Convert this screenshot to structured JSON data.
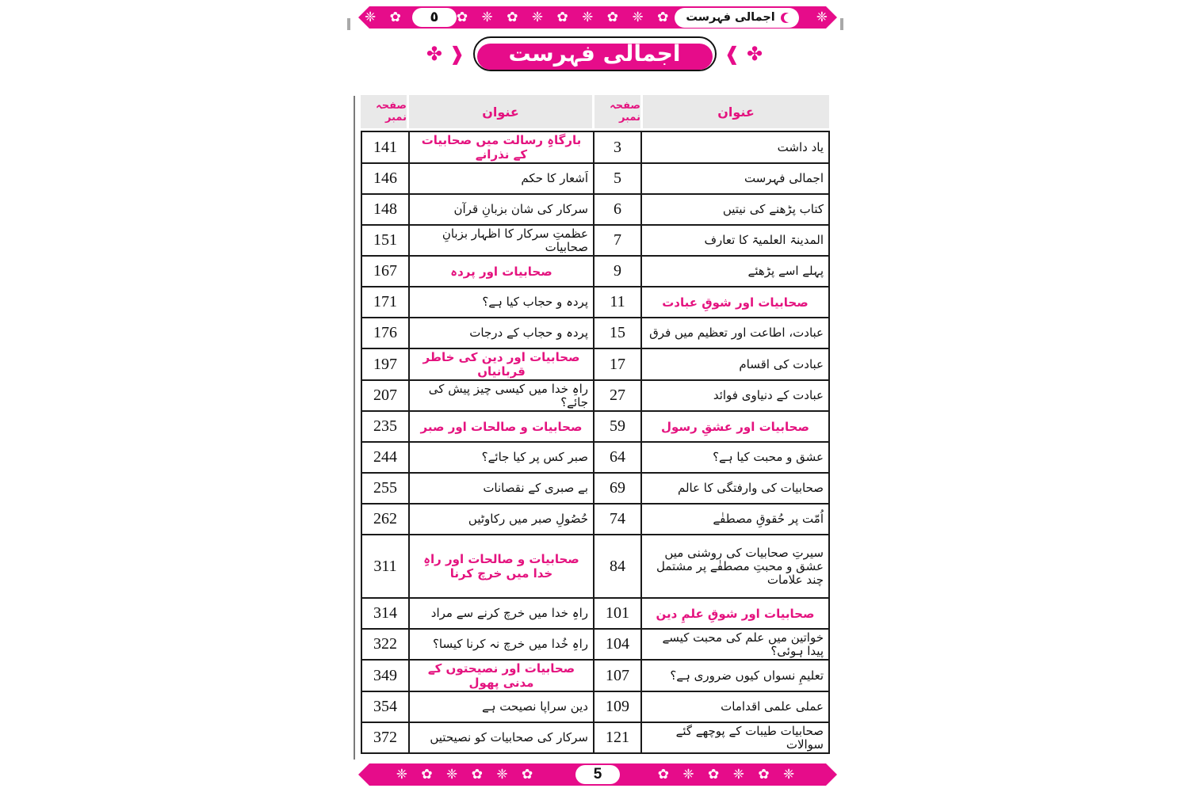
{
  "colors": {
    "accent": "#e60c8a",
    "section_text": "#e4137f",
    "header_cell_bg": "#e9e9e9",
    "body_text": "#111111"
  },
  "header_band": {
    "page_number_urdu": "٥",
    "running_title": "اجمالی فہرست",
    "crescent_icon": "crescent",
    "ornaments_left": "❈ ✿",
    "ornaments_middle": "✿ ❈ ✿ ❈ ✿ ❈ ✿ ❈ ✿ ❈ ✿",
    "ornaments_right": "❈"
  },
  "title_badge": {
    "text": "اجمالی فہرست",
    "ornament_left": "✤ ❱",
    "ornament_right": "❰ ✤"
  },
  "footer_band": {
    "page_number": "5",
    "ornaments_left": "❈ ✿ ❈ ✿ ❈ ✿",
    "ornaments_right": "✿ ❈ ✿ ❈ ✿ ❈"
  },
  "table": {
    "header": {
      "page_no": "صفحہ نمبر",
      "title": "عنوان"
    },
    "rows": [
      {
        "tall": false,
        "left": {
          "page": "141",
          "title": "بارگاہِ رسالت میں صحابیات کے نذرانے",
          "section": true
        },
        "right": {
          "page": "3",
          "title": "یاد داشت",
          "section": false
        }
      },
      {
        "tall": false,
        "left": {
          "page": "146",
          "title": "اَشعار کا حکم",
          "section": false
        },
        "right": {
          "page": "5",
          "title": "اجمالی فہرست",
          "section": false
        }
      },
      {
        "tall": false,
        "left": {
          "page": "148",
          "title": "سرکار کی شان بزبانِ قرآن",
          "section": false
        },
        "right": {
          "page": "6",
          "title": "کتاب پڑھنے کی نیتیں",
          "section": false
        }
      },
      {
        "tall": false,
        "left": {
          "page": "151",
          "title": "عظمتِ سرکار کا اظہار بزبانِ صحابیات",
          "section": false
        },
        "right": {
          "page": "7",
          "title": "المدینۃ العلمیۃ کا تعارف",
          "section": false
        }
      },
      {
        "tall": false,
        "left": {
          "page": "167",
          "title": "صحابیات اور پردہ",
          "section": true
        },
        "right": {
          "page": "9",
          "title": "پہلے اسے پڑھئے",
          "section": false
        }
      },
      {
        "tall": false,
        "left": {
          "page": "171",
          "title": "پردہ و حجاب کیا ہے؟",
          "section": false
        },
        "right": {
          "page": "11",
          "title": "صحابیات اور شوقِ عبادت",
          "section": true
        }
      },
      {
        "tall": false,
        "left": {
          "page": "176",
          "title": "پردہ و حجاب کے درجات",
          "section": false
        },
        "right": {
          "page": "15",
          "title": "عبادت، اطاعت اور تعظیم میں فرق",
          "section": false
        }
      },
      {
        "tall": false,
        "left": {
          "page": "197",
          "title": "صحابیات اور دین کی خاطر قربانیاں",
          "section": true
        },
        "right": {
          "page": "17",
          "title": "عبادت کی اقسام",
          "section": false
        }
      },
      {
        "tall": false,
        "left": {
          "page": "207",
          "title": "راہِ خدا میں کیسی چیز پیش کی جائے؟",
          "section": false
        },
        "right": {
          "page": "27",
          "title": "عبادت کے دنیاوی فوائد",
          "section": false
        }
      },
      {
        "tall": false,
        "left": {
          "page": "235",
          "title": "صحابیات و صالحات اور صبر",
          "section": true
        },
        "right": {
          "page": "59",
          "title": "صحابیات اور عشقِ رسول",
          "section": true
        }
      },
      {
        "tall": false,
        "left": {
          "page": "244",
          "title": "صبر کس پر کیا جائے؟",
          "section": false
        },
        "right": {
          "page": "64",
          "title": "عشق و محبت کیا ہے؟",
          "section": false
        }
      },
      {
        "tall": false,
        "left": {
          "page": "255",
          "title": "بے صبری کے نقصانات",
          "section": false
        },
        "right": {
          "page": "69",
          "title": "صحابیات کی وارفتگی کا عالم",
          "section": false
        }
      },
      {
        "tall": false,
        "left": {
          "page": "262",
          "title": "حُصُولِ صبر میں رکاوٹیں",
          "section": false
        },
        "right": {
          "page": "74",
          "title": "اُمّت پر حُقوقِ مصطفٰے",
          "section": false
        }
      },
      {
        "tall": true,
        "left": {
          "page": "311",
          "title": "صحابیات و صالحات اور راہِ خدا میں خرچ کرنا",
          "section": true
        },
        "right": {
          "page": "84",
          "title": "سیرتِ صحابیات کی روشنی میں عشق و محبتِ مصطفٰے پر مشتمل چند علامات",
          "section": false
        }
      },
      {
        "tall": false,
        "left": {
          "page": "314",
          "title": "راہِ خدا میں خرچ کرنے سے مراد",
          "section": false
        },
        "right": {
          "page": "101",
          "title": "صحابیات اور شوقِ علمِ دین",
          "section": true
        }
      },
      {
        "tall": false,
        "left": {
          "page": "322",
          "title": "راہِ خُدا میں خرچ نہ کرنا کیسا؟",
          "section": false
        },
        "right": {
          "page": "104",
          "title": "خواتین میں علم کی محبت کیسے پیدا ہوئی؟",
          "section": false
        }
      },
      {
        "tall": false,
        "left": {
          "page": "349",
          "title": "صحابیات اور نصیحتوں کے مدنی پھول",
          "section": true
        },
        "right": {
          "page": "107",
          "title": "تعلیمِ نسواں کیوں ضروری ہے؟",
          "section": false
        }
      },
      {
        "tall": false,
        "left": {
          "page": "354",
          "title": "دین سراپا نصیحت ہے",
          "section": false
        },
        "right": {
          "page": "109",
          "title": "عملی علمی اقدامات",
          "section": false
        }
      },
      {
        "tall": false,
        "left": {
          "page": "372",
          "title": "سرکار کی صحابیات کو نصیحتیں",
          "section": false
        },
        "right": {
          "page": "121",
          "title": "صحابیات طیبات کے پوچھے گئے سوالات",
          "section": false
        }
      }
    ]
  }
}
